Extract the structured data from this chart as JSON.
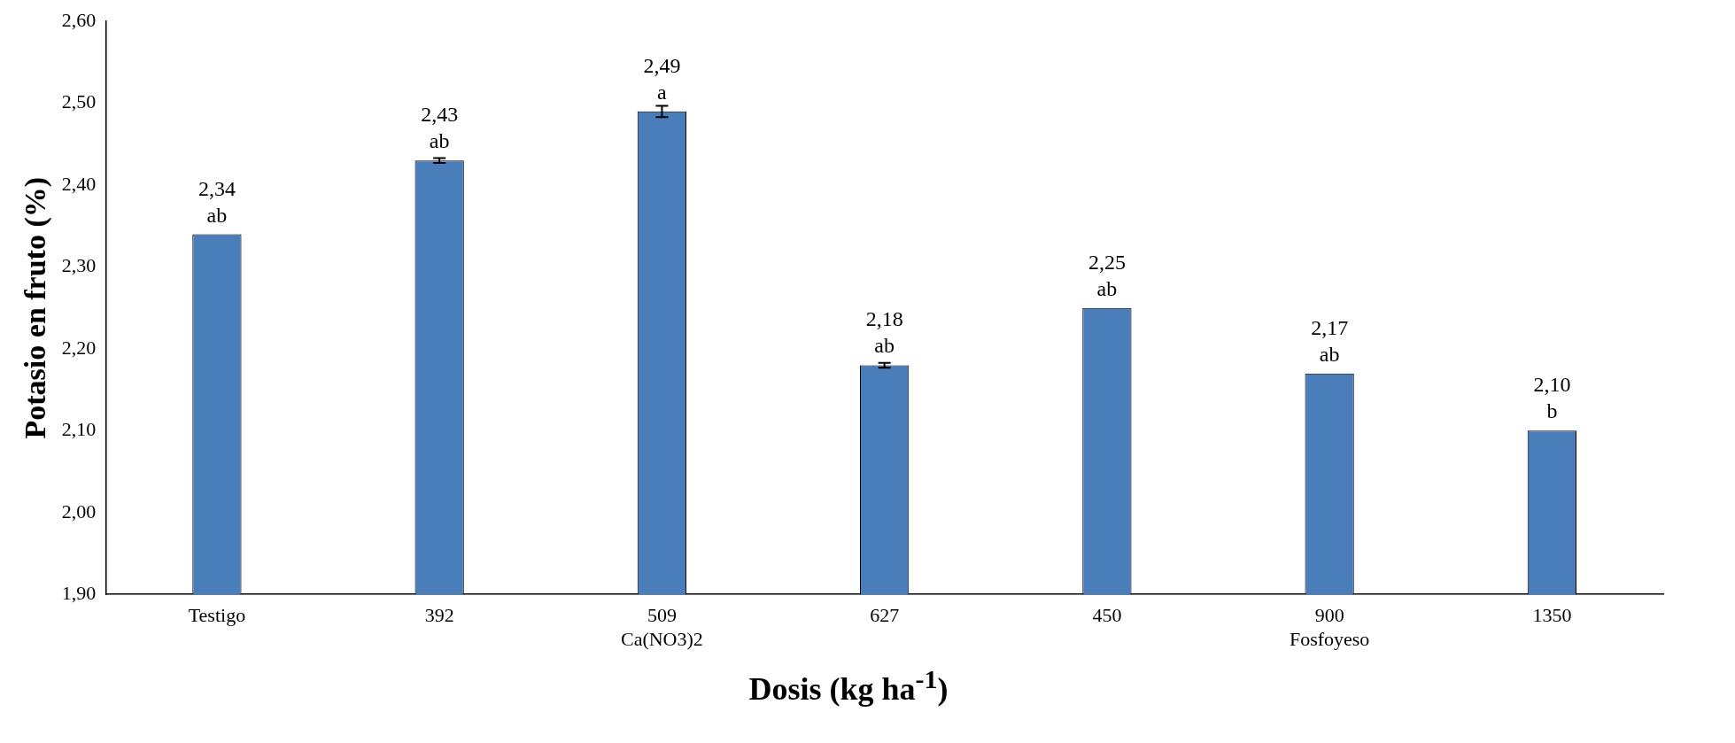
{
  "chart_data": {
    "type": "bar",
    "ylabel": "Potasio en fruto (%)",
    "xlabel": "Dosis (kg ha$^{-1}$)",
    "categories": [
      "Testigo",
      "392",
      "509\nCa(NO3)2",
      "627",
      "450",
      "900\nFosfoyeso",
      "1350"
    ],
    "values": [
      2.34,
      2.43,
      2.49,
      2.18,
      2.25,
      2.17,
      2.1
    ],
    "errors": [
      null,
      0.003,
      0.007,
      0.003,
      null,
      null,
      null
    ],
    "value_labels": [
      "2,34",
      "2,43",
      "2,49",
      "2,18",
      "2,25",
      "2,17",
      "2,10"
    ],
    "color": "#4a7ebb",
    "ylim": [
      1.9,
      2.6
    ],
    "yticks": [
      {
        "value": 1.9,
        "label": "1,90"
      },
      {
        "value": 2.0,
        "label": "2,00"
      },
      {
        "value": 2.1,
        "label": "2,10"
      },
      {
        "value": 2.2,
        "label": "2,20"
      },
      {
        "value": 2.3,
        "label": "2,30"
      },
      {
        "value": 2.4,
        "label": "2,40"
      },
      {
        "value": 2.5,
        "label": "2,50"
      },
      {
        "value": 2.6,
        "label": "2,60"
      }
    ],
    "grid": false,
    "legend": false,
    "annotations": [
      {
        "text": "ab",
        "x": "Testigo",
        "y": 2.34
      },
      {
        "text": "ab",
        "x": "392",
        "y": 2.43
      },
      {
        "text": "a",
        "x": "509\nCa(NO3)2",
        "y": 2.49
      },
      {
        "text": "ab",
        "x": "627",
        "y": 2.18
      },
      {
        "text": "ab",
        "x": "450",
        "y": 2.25
      },
      {
        "text": "ab",
        "x": "900\nFosfoyeso",
        "y": 2.17
      },
      {
        "text": "b",
        "x": "1350",
        "y": 2.1
      }
    ]
  }
}
